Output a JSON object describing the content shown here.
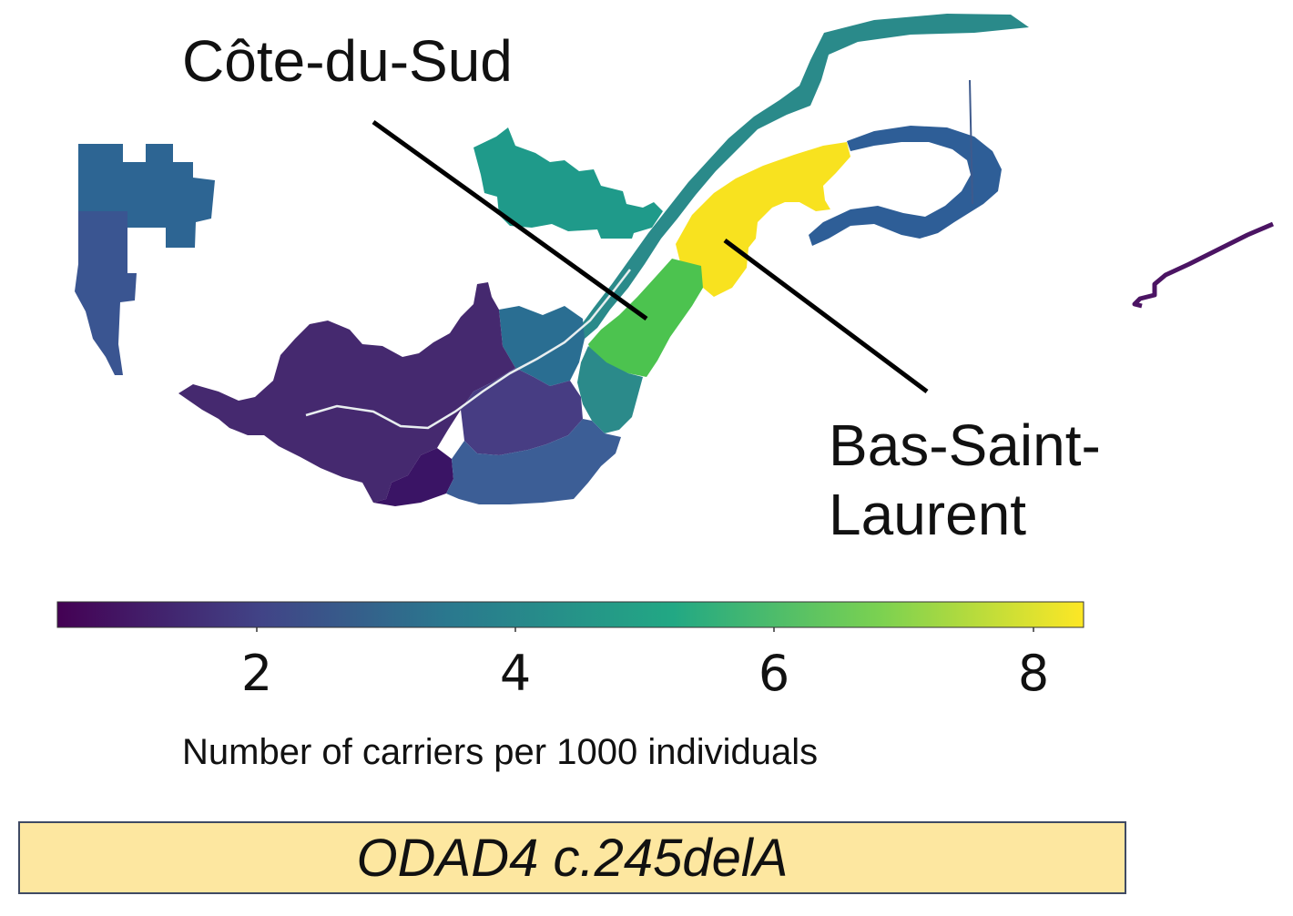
{
  "labels": {
    "region_1": "Côte-du-Sud",
    "region_2": "Bas-Saint-Laurent"
  },
  "variant": "ODAD4 c.245delA",
  "colorbar": {
    "label": "Number of carriers per 1000 individuals",
    "ticks": [
      "2",
      "4",
      "6",
      "8"
    ],
    "colormap": "viridis",
    "stops": [
      "#440154",
      "#414487",
      "#2a788e",
      "#22a884",
      "#7ad151",
      "#fde725"
    ]
  },
  "colors": {
    "box_fill": "#fde7a0",
    "box_border": "#3f4a63",
    "pointer_line": "#000000"
  }
}
